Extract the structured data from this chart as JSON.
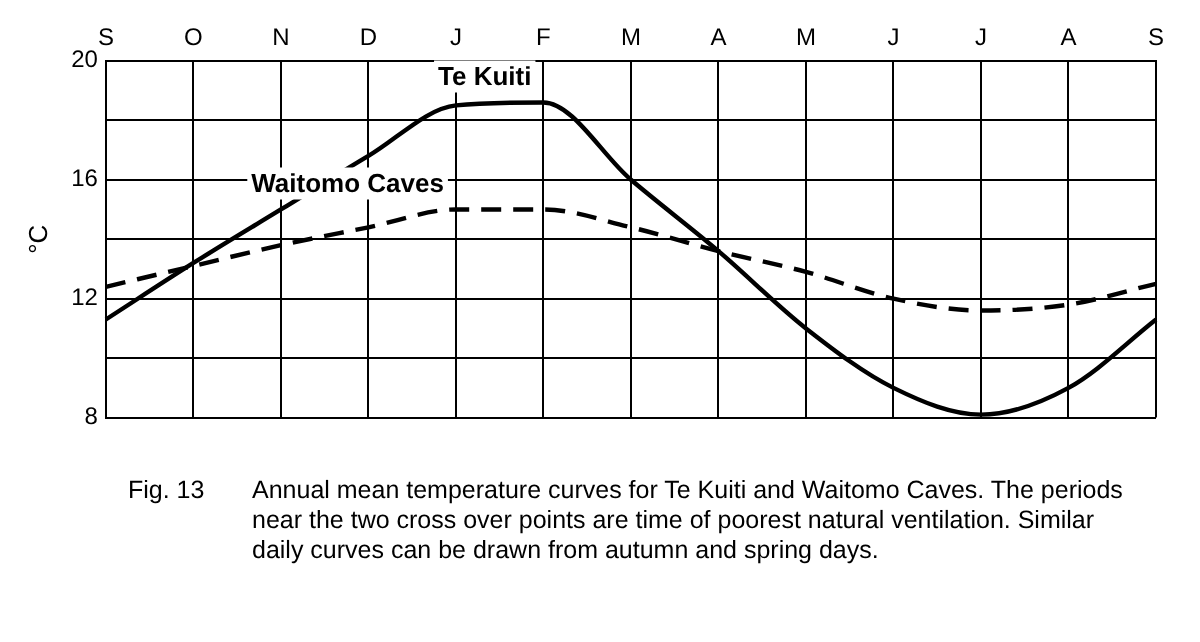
{
  "chart_data": {
    "type": "line",
    "categories": [
      "S",
      "O",
      "N",
      "D",
      "J",
      "F",
      "M",
      "A",
      "M",
      "J",
      "J",
      "A",
      "S"
    ],
    "ylabel": "°C",
    "ylim": [
      8,
      20
    ],
    "yticks": [
      8,
      {
        "value": 10,
        "label": null
      },
      12,
      {
        "value": 14,
        "label": null
      },
      16,
      {
        "value": 18,
        "label": null
      },
      20
    ],
    "grid": true,
    "legend": false,
    "marker": "none",
    "series": [
      {
        "name": "Te Kuiti",
        "color": "#000000",
        "line_style": "solid",
        "values": [
          11.3,
          13.2,
          15.0,
          16.8,
          18.5,
          18.6,
          16.0,
          13.6,
          11.0,
          9.0,
          8.1,
          9.0,
          11.3
        ]
      },
      {
        "name": "Waitomo Caves",
        "color": "#000000",
        "line_style": "dashed",
        "values": [
          12.4,
          13.1,
          13.8,
          14.4,
          15.0,
          15.0,
          14.4,
          13.6,
          12.9,
          12.0,
          11.6,
          11.8,
          12.5
        ]
      }
    ],
    "annotations": [
      "Fig. 13",
      "Annual mean temperature curves for Te Kuiti and Waitomo Caves. The periods near the two cross over points are time of poorest natural ventilation. Similar daily curves can be drawn from autumn and spring days."
    ]
  }
}
